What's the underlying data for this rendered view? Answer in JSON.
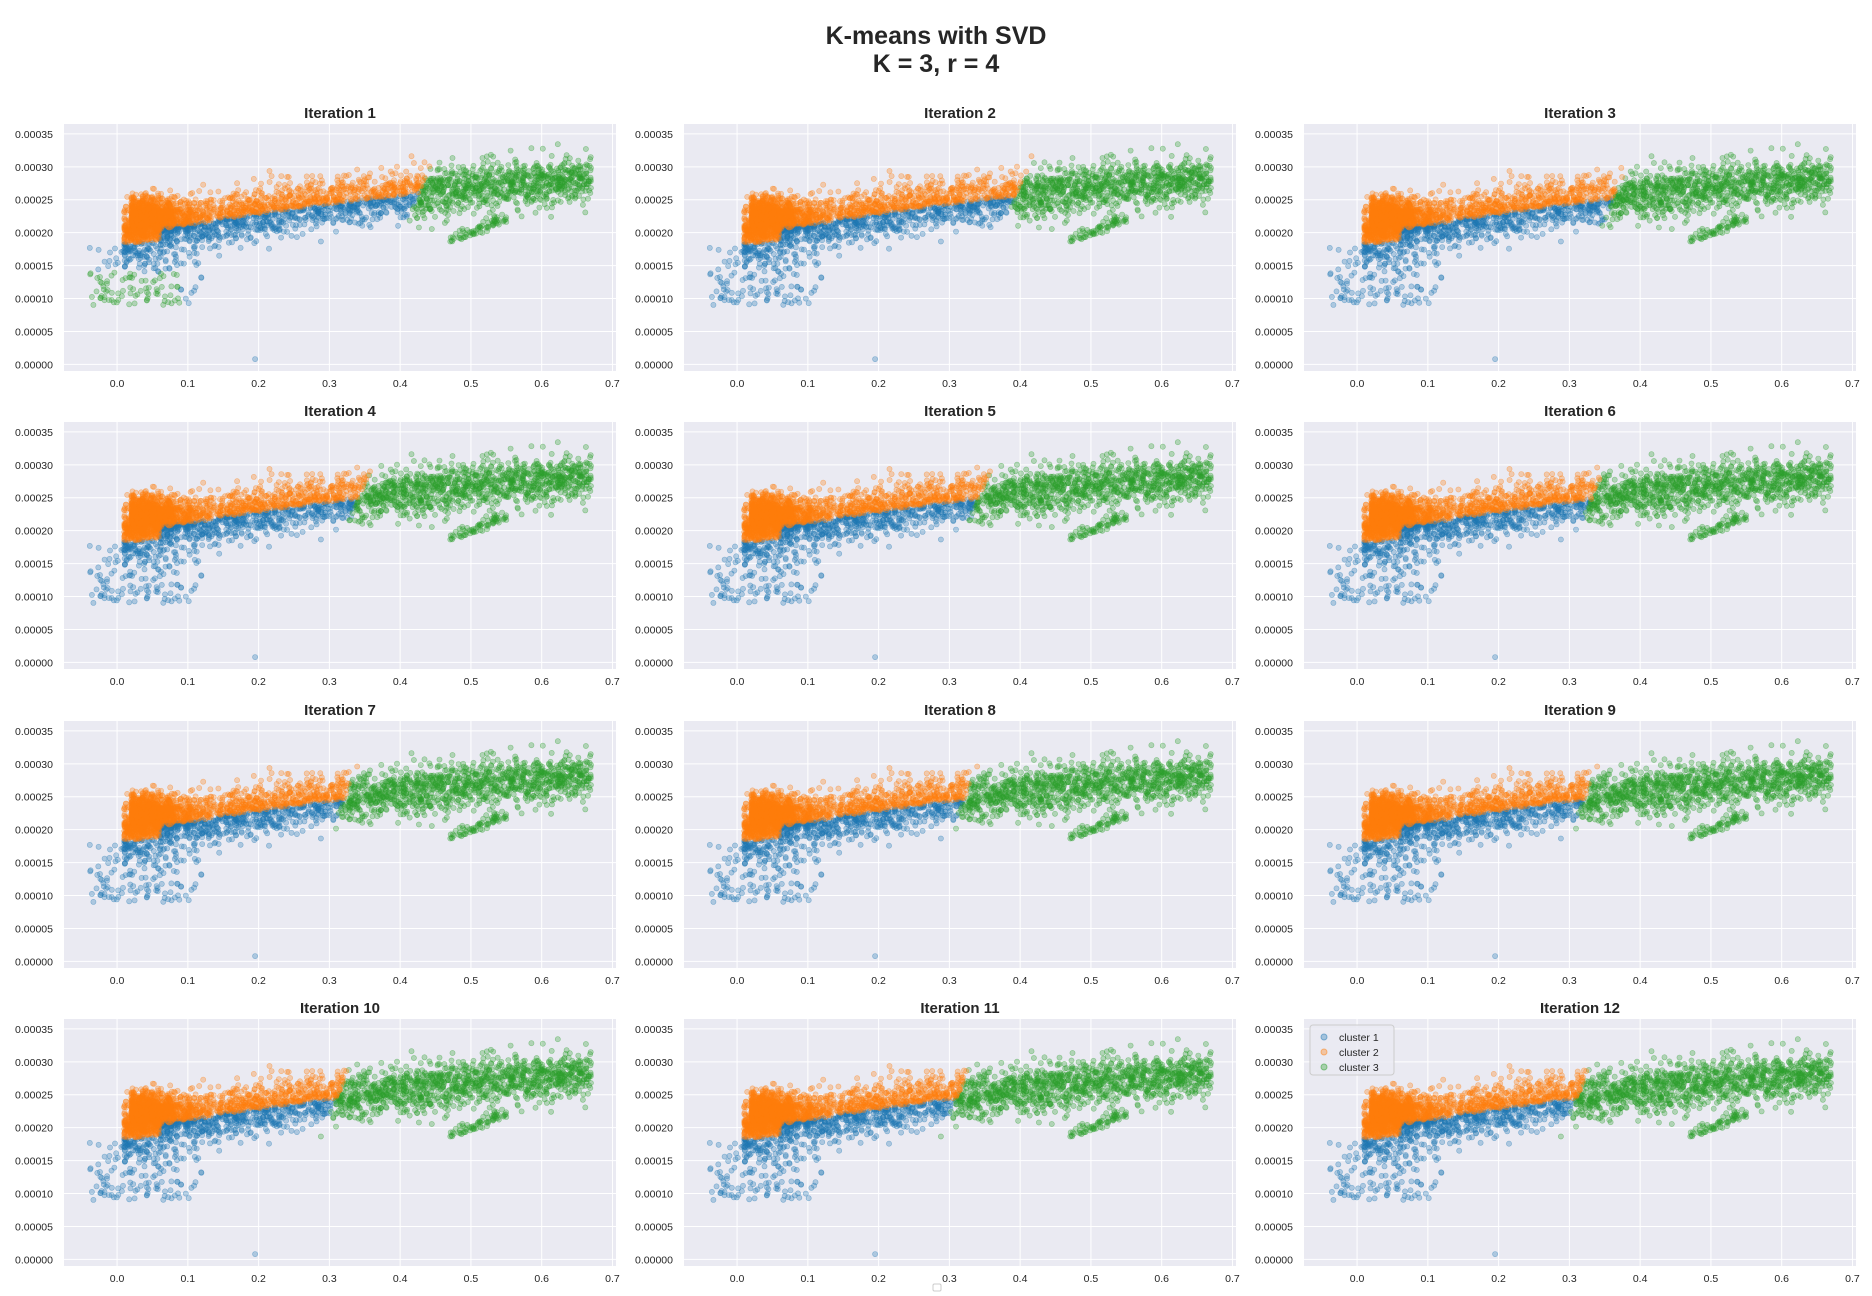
{
  "figure": {
    "title_line1": "K-means with SVD",
    "title_line2": "K = 3, r = 4"
  },
  "chart_data": {
    "type": "scatter",
    "layout": "4x3 grid of subplots",
    "panel_titles": [
      "Iteration 1",
      "Iteration 2",
      "Iteration 3",
      "Iteration 4",
      "Iteration 5",
      "Iteration 6",
      "Iteration 7",
      "Iteration 8",
      "Iteration 9",
      "Iteration 10",
      "Iteration 11",
      "Iteration 12"
    ],
    "xlim": [
      -0.075,
      0.705
    ],
    "ylim": [
      -1e-05,
      0.000365
    ],
    "x_ticks": [
      0.0,
      0.1,
      0.2,
      0.3,
      0.4,
      0.5,
      0.6,
      0.7
    ],
    "x_tick_labels": [
      "0.0",
      "0.1",
      "0.2",
      "0.3",
      "0.4",
      "0.5",
      "0.6",
      "0.7"
    ],
    "y_ticks": [
      0.0,
      5e-05,
      0.0001,
      0.00015,
      0.0002,
      0.00025,
      0.0003,
      0.00035
    ],
    "y_tick_labels": [
      "0.00000",
      "0.00005",
      "0.00010",
      "0.00015",
      "0.00020",
      "0.00025",
      "0.00030",
      "0.00035"
    ],
    "grid": true,
    "legend": {
      "panel": 12,
      "placement": "upper-left"
    },
    "colors": {
      "axes_background": "#eaeaf2",
      "grid": "#ffffff"
    },
    "series": [
      {
        "name": "cluster 1",
        "color": "#1f77b4",
        "alpha": 0.3
      },
      {
        "name": "cluster 2",
        "color": "#ff7f0e",
        "alpha": 0.3
      },
      {
        "name": "cluster 3",
        "color": "#2ca02c",
        "alpha": 0.3
      }
    ],
    "data_description": {
      "main_band": {
        "x_range": [
          0.01,
          0.67
        ],
        "y_at_x0": 0.000205,
        "slope": 0.000205,
        "y_spread": 6e-05
      },
      "outlier": {
        "x": 0.195,
        "y": 8e-06
      },
      "cluster_1_x_boundary_by_iteration": [
        0.43,
        0.4,
        0.37,
        0.35,
        0.35,
        0.34,
        0.33,
        0.33,
        0.33,
        0.32,
        0.32,
        0.32
      ]
    }
  }
}
